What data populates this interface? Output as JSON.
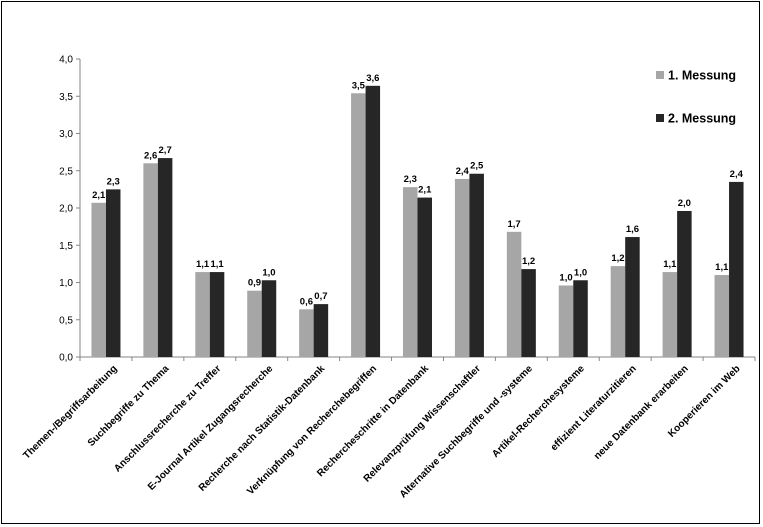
{
  "chart_data": {
    "type": "bar",
    "categories": [
      "Themen-/Begriffsarbeitung",
      "Suchbegriffe zu Thema",
      "Anschlussrecherche zu Treffer",
      "E-Journal Artikel Zugangsrecherche",
      "Recherche nach Statistik-Datenbank",
      "Verknüpfung von Recherchebegriffen",
      "Rechercheschritte in Datenbank",
      "Relevanzprüfung Wissenschaftler",
      "Alternative Suchbegriffe und -systeme",
      "Artikel-Recherchesysteme",
      "effizient Literaturzitieren",
      "neue Datenbank erarbeiten",
      "Kooperieren im Web"
    ],
    "series": [
      {
        "name": "1. Messung",
        "color": "#a6a6a6",
        "values": [
          2.07,
          2.6,
          1.14,
          0.89,
          0.64,
          3.54,
          2.28,
          2.39,
          1.68,
          0.96,
          1.22,
          1.14,
          1.1
        ],
        "labels": [
          "2,1",
          "2,6",
          "1,1",
          "0,9",
          "0,6",
          "3,5",
          "2,3",
          "2,4",
          "1,7",
          "1,0",
          "1,2",
          "1,1",
          "1,1"
        ]
      },
      {
        "name": "2. Messung",
        "color": "#262626",
        "values": [
          2.25,
          2.67,
          1.14,
          1.03,
          0.71,
          3.64,
          2.14,
          2.46,
          1.18,
          1.03,
          1.61,
          1.96,
          2.35
        ],
        "labels": [
          "2,3",
          "2,7",
          "1,1",
          "1,0",
          "0,7",
          "3,6",
          "2,1",
          "2,5",
          "1,2",
          "1,0",
          "1,6",
          "2,0",
          "2,4"
        ]
      }
    ],
    "ylim": [
      0,
      4
    ],
    "yticks": [
      "0,0",
      "0,5",
      "1,0",
      "1,5",
      "2,0",
      "2,5",
      "3,0",
      "3,5",
      "4,0"
    ],
    "ytick_values": [
      0,
      0.5,
      1,
      1.5,
      2,
      2.5,
      3,
      3.5,
      4
    ],
    "grid": false,
    "legend_position": "top-right",
    "title": "",
    "xlabel": "",
    "ylabel": ""
  }
}
